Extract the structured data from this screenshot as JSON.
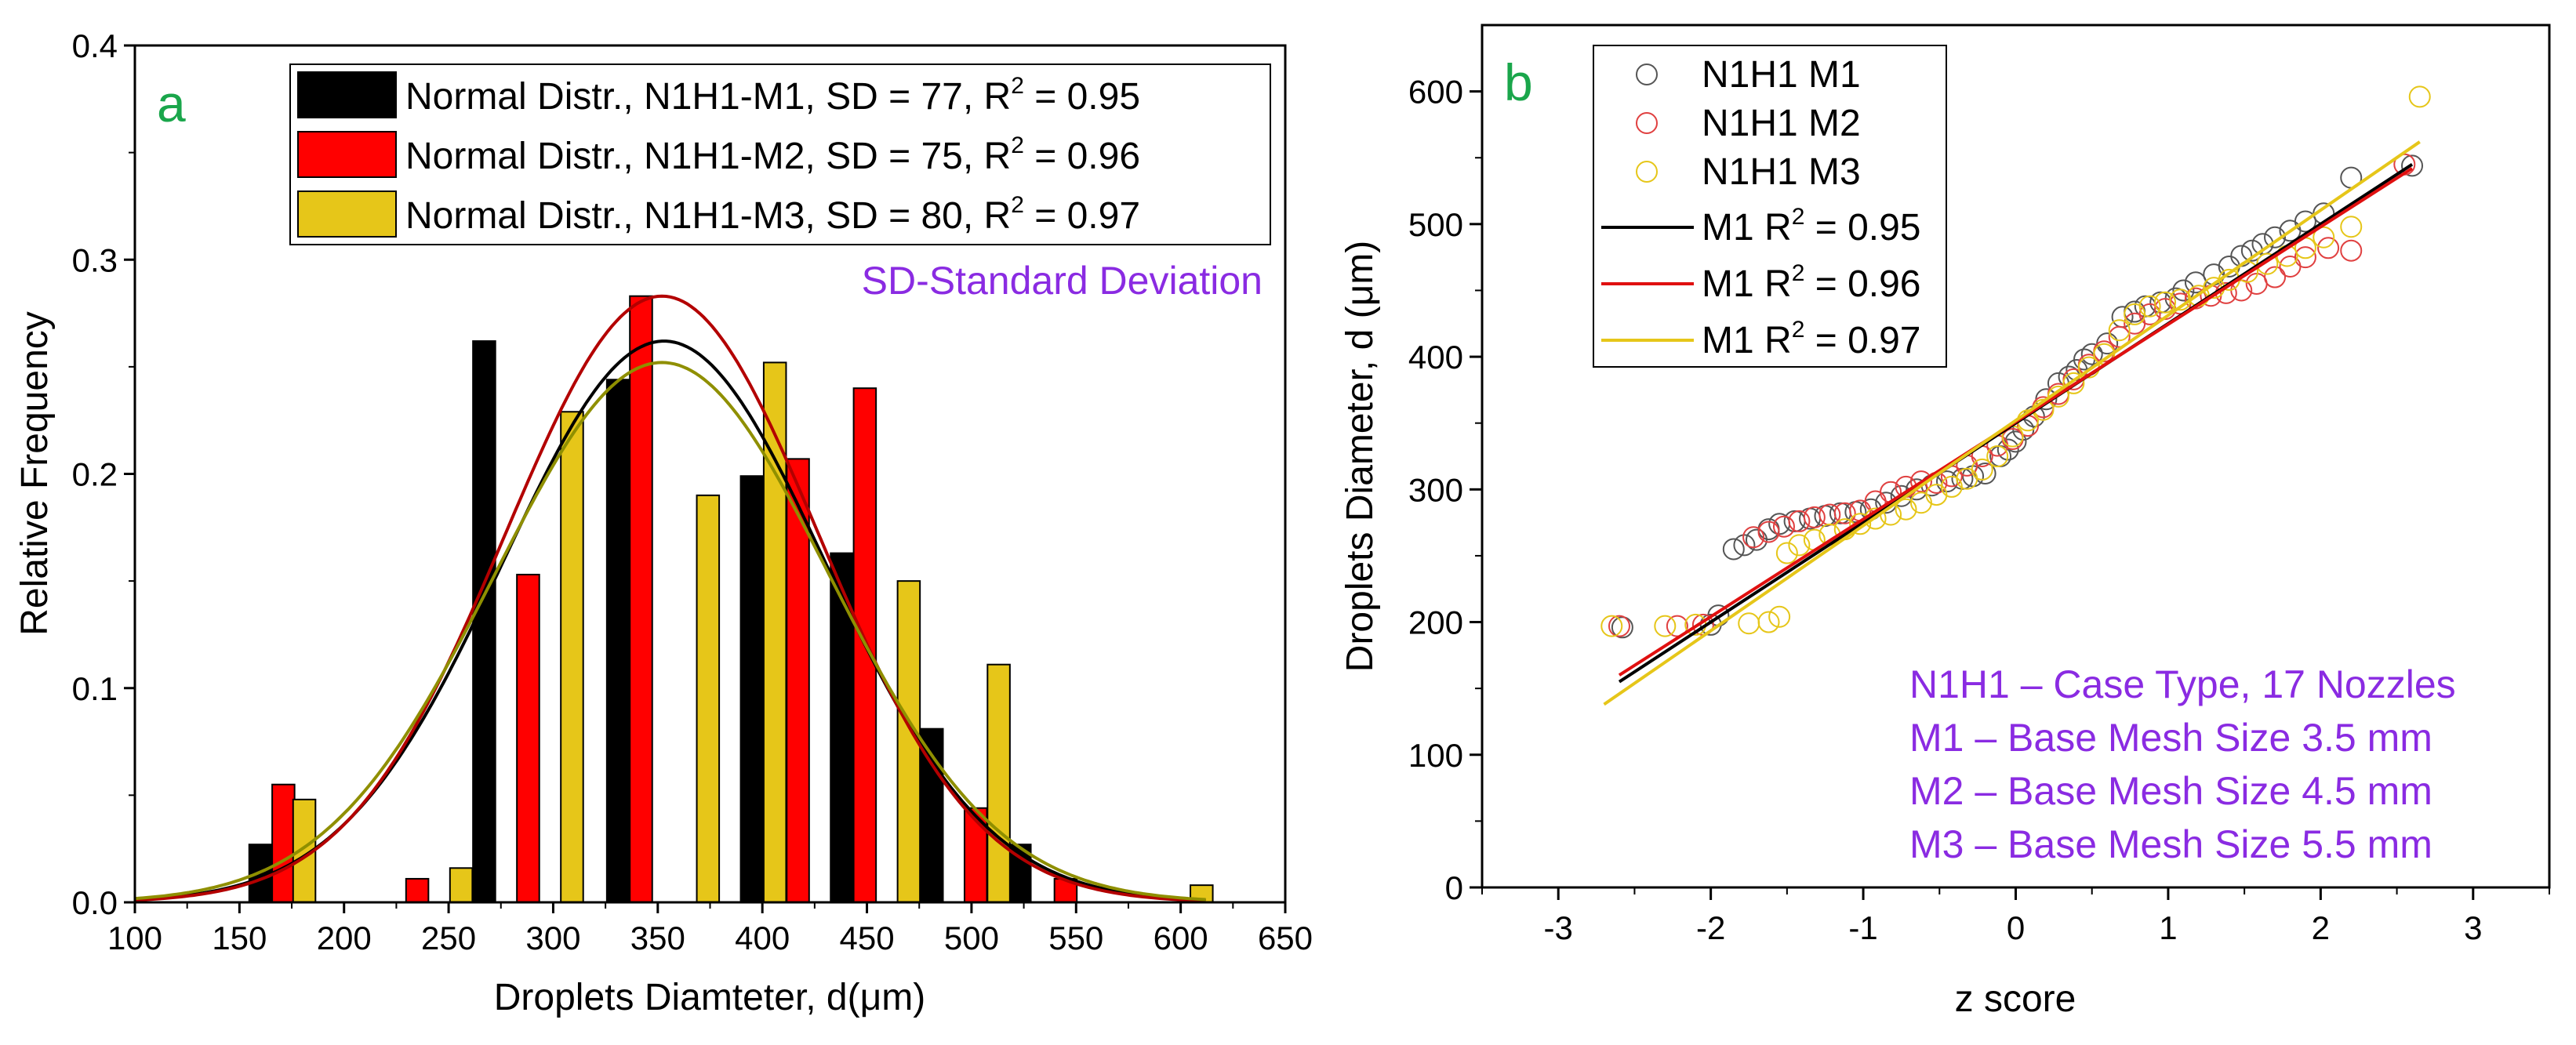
{
  "chart_data": [
    {
      "panel_label": "a",
      "type": "bar",
      "xlabel": "Droplets Diamteter, d(μm)",
      "ylabel": "Relative Frequency",
      "xlim": [
        100,
        650
      ],
      "ylim": [
        0,
        0.4
      ],
      "xticks": [
        "100",
        "150",
        "200",
        "250",
        "300",
        "350",
        "400",
        "450",
        "500",
        "550",
        "600",
        "650"
      ],
      "yticks": [
        "0.0",
        "0.1",
        "0.2",
        "0.3",
        "0.4"
      ],
      "bin_width": 10.7,
      "legend_position": "top-right",
      "note": "SD-Standard Deviation",
      "series": [
        {
          "name": "Normal Distr., N1H1-M1, SD = 77, R",
          "r2_text": " = 0.95",
          "color": "#000000",
          "bars": [
            {
              "x": 160,
              "y": 0.027
            },
            {
              "x": 267,
              "y": 0.262
            },
            {
              "x": 331,
              "y": 0.244
            },
            {
              "x": 395,
              "y": 0.199
            },
            {
              "x": 438,
              "y": 0.163
            },
            {
              "x": 481,
              "y": 0.081
            },
            {
              "x": 523,
              "y": 0.027
            }
          ],
          "fit": {
            "mean": 353,
            "sd": 77,
            "peak": 0.262,
            "color": "#000000"
          }
        },
        {
          "name": "Normal Distr., N1H1-M2, SD = 75, R",
          "r2_text": " = 0.96",
          "color": "#ff0000",
          "bars": [
            {
              "x": 171,
              "y": 0.055
            },
            {
              "x": 235,
              "y": 0.011
            },
            {
              "x": 288,
              "y": 0.153
            },
            {
              "x": 342,
              "y": 0.283
            },
            {
              "x": 417,
              "y": 0.207
            },
            {
              "x": 449,
              "y": 0.24
            },
            {
              "x": 502,
              "y": 0.044
            },
            {
              "x": 545,
              "y": 0.011
            }
          ],
          "fit": {
            "mean": 352,
            "sd": 75,
            "peak": 0.283,
            "color": "#b30000"
          }
        },
        {
          "name": "Normal Distr., N1H1-M3, SD = 80, R",
          "r2_text": " = 0.97",
          "color": "#e6c619",
          "bars": [
            {
              "x": 181,
              "y": 0.048
            },
            {
              "x": 256,
              "y": 0.016
            },
            {
              "x": 309,
              "y": 0.229
            },
            {
              "x": 374,
              "y": 0.19
            },
            {
              "x": 406,
              "y": 0.252
            },
            {
              "x": 470,
              "y": 0.15
            },
            {
              "x": 513,
              "y": 0.111
            },
            {
              "x": 610,
              "y": 0.008
            }
          ],
          "fit": {
            "mean": 352,
            "sd": 80,
            "peak": 0.252,
            "color": "#8f8f00"
          }
        }
      ]
    },
    {
      "panel_label": "b",
      "type": "scatter",
      "xlabel": "z score",
      "ylabel": "Droplets Diameter, d (μm)",
      "xlim": [
        -3.5,
        3.5
      ],
      "ylim": [
        0,
        650
      ],
      "xticks": [
        "-3",
        "-2",
        "-1",
        "0",
        "1",
        "2",
        "3"
      ],
      "yticks": [
        "0",
        "100",
        "200",
        "300",
        "400",
        "500",
        "600"
      ],
      "legend_position": "top-left",
      "series": [
        {
          "name": "N1H1 M1",
          "color": "#555555",
          "legend_marker": "circle",
          "points": [
            [
              -2.58,
              196
            ],
            [
              -2.0,
              198
            ],
            [
              -1.95,
              205
            ],
            [
              -1.85,
              255
            ],
            [
              -1.78,
              258
            ],
            [
              -1.7,
              262
            ],
            [
              -1.62,
              270
            ],
            [
              -1.55,
              274
            ],
            [
              -1.45,
              276
            ],
            [
              -1.35,
              278
            ],
            [
              -1.25,
              280
            ],
            [
              -1.15,
              282
            ],
            [
              -1.05,
              283
            ],
            [
              -0.95,
              285
            ],
            [
              -0.85,
              290
            ],
            [
              -0.75,
              295
            ],
            [
              -0.65,
              300
            ],
            [
              -0.55,
              303
            ],
            [
              -0.45,
              306
            ],
            [
              -0.35,
              308
            ],
            [
              -0.28,
              310
            ],
            [
              -0.2,
              312
            ],
            [
              -0.1,
              325
            ],
            [
              -0.05,
              330
            ],
            [
              0.0,
              336
            ],
            [
              0.05,
              345
            ],
            [
              0.12,
              355
            ],
            [
              0.2,
              368
            ],
            [
              0.28,
              380
            ],
            [
              0.35,
              385
            ],
            [
              0.4,
              390
            ],
            [
              0.45,
              398
            ],
            [
              0.5,
              402
            ],
            [
              0.6,
              410
            ],
            [
              0.7,
              430
            ],
            [
              0.78,
              434
            ],
            [
              0.85,
              438
            ],
            [
              0.95,
              441
            ],
            [
              1.05,
              444
            ],
            [
              1.1,
              450
            ],
            [
              1.18,
              456
            ],
            [
              1.3,
              462
            ],
            [
              1.4,
              468
            ],
            [
              1.48,
              476
            ],
            [
              1.55,
              480
            ],
            [
              1.62,
              485
            ],
            [
              1.7,
              490
            ],
            [
              1.8,
              495
            ],
            [
              1.9,
              502
            ],
            [
              2.02,
              508
            ],
            [
              2.2,
              535
            ],
            [
              2.6,
              544
            ]
          ]
        },
        {
          "name": "N1H1 M2",
          "color": "#e04040",
          "legend_marker": "circle",
          "points": [
            [
              -2.6,
              197
            ],
            [
              -2.22,
              197
            ],
            [
              -2.05,
              198
            ],
            [
              -1.72,
              264
            ],
            [
              -1.62,
              268
            ],
            [
              -1.52,
              272
            ],
            [
              -1.42,
              276
            ],
            [
              -1.32,
              279
            ],
            [
              -1.22,
              281
            ],
            [
              -1.12,
              282
            ],
            [
              -1.02,
              284
            ],
            [
              -0.92,
              291
            ],
            [
              -0.82,
              298
            ],
            [
              -0.72,
              302
            ],
            [
              -0.62,
              306
            ],
            [
              -0.52,
              305
            ],
            [
              -0.42,
              310
            ],
            [
              -0.32,
              318
            ],
            [
              -0.22,
              325
            ],
            [
              -0.12,
              333
            ],
            [
              -0.02,
              338
            ],
            [
              0.08,
              348
            ],
            [
              0.18,
              362
            ],
            [
              0.28,
              372
            ],
            [
              0.38,
              383
            ],
            [
              0.48,
              394
            ],
            [
              0.58,
              404
            ],
            [
              0.68,
              415
            ],
            [
              0.78,
              425
            ],
            [
              0.88,
              432
            ],
            [
              0.98,
              436
            ],
            [
              1.08,
              440
            ],
            [
              1.18,
              444
            ],
            [
              1.28,
              446
            ],
            [
              1.38,
              448
            ],
            [
              1.48,
              450
            ],
            [
              1.58,
              455
            ],
            [
              1.7,
              460
            ],
            [
              1.8,
              468
            ],
            [
              1.9,
              475
            ],
            [
              2.05,
              482
            ],
            [
              2.2,
              480
            ],
            [
              2.55,
              545
            ]
          ]
        },
        {
          "name": "N1H1 M3",
          "color": "#e6c619",
          "legend_marker": "circle",
          "points": [
            [
              -2.65,
              197
            ],
            [
              -2.3,
              197
            ],
            [
              -2.1,
              198
            ],
            [
              -1.75,
              199
            ],
            [
              -1.62,
              200
            ],
            [
              -1.55,
              204
            ],
            [
              -1.5,
              252
            ],
            [
              -1.42,
              258
            ],
            [
              -1.32,
              262
            ],
            [
              -1.22,
              266
            ],
            [
              -1.12,
              270
            ],
            [
              -1.02,
              274
            ],
            [
              -0.92,
              278
            ],
            [
              -0.82,
              281
            ],
            [
              -0.72,
              285
            ],
            [
              -0.62,
              290
            ],
            [
              -0.52,
              296
            ],
            [
              -0.42,
              302
            ],
            [
              -0.32,
              308
            ],
            [
              -0.22,
              315
            ],
            [
              -0.12,
              325
            ],
            [
              -0.02,
              340
            ],
            [
              0.08,
              352
            ],
            [
              0.18,
              360
            ],
            [
              0.28,
              370
            ],
            [
              0.38,
              380
            ],
            [
              0.48,
              392
            ],
            [
              0.58,
              402
            ],
            [
              0.68,
              420
            ],
            [
              0.78,
              432
            ],
            [
              0.88,
              438
            ],
            [
              0.98,
              441
            ],
            [
              1.08,
              443
            ],
            [
              1.2,
              446
            ],
            [
              1.3,
              452
            ],
            [
              1.4,
              458
            ],
            [
              1.52,
              464
            ],
            [
              1.65,
              470
            ],
            [
              1.78,
              476
            ],
            [
              1.9,
              482
            ],
            [
              2.02,
              490
            ],
            [
              2.2,
              498
            ],
            [
              2.65,
              596
            ]
          ]
        }
      ],
      "fit_lines": [
        {
          "name": "M1 R",
          "r2_text": " = 0.95",
          "color": "#000000",
          "x": [
            -2.6,
            2.6
          ],
          "y": [
            155,
            545
          ]
        },
        {
          "name": "M1 R",
          "r2_text": " = 0.96",
          "color": "#e01010",
          "x": [
            -2.6,
            2.6
          ],
          "y": [
            160,
            542
          ]
        },
        {
          "name": "M1 R",
          "r2_text": " = 0.97",
          "color": "#e6c619",
          "x": [
            -2.7,
            2.65
          ],
          "y": [
            138,
            562
          ]
        }
      ],
      "notes": [
        "N1H1 – Case Type, 17 Nozzles",
        "M1 – Base Mesh Size 3.5 mm",
        "M2 – Base Mesh Size 4.5 mm",
        "M3 – Base Mesh Size 5.5 mm"
      ]
    }
  ]
}
